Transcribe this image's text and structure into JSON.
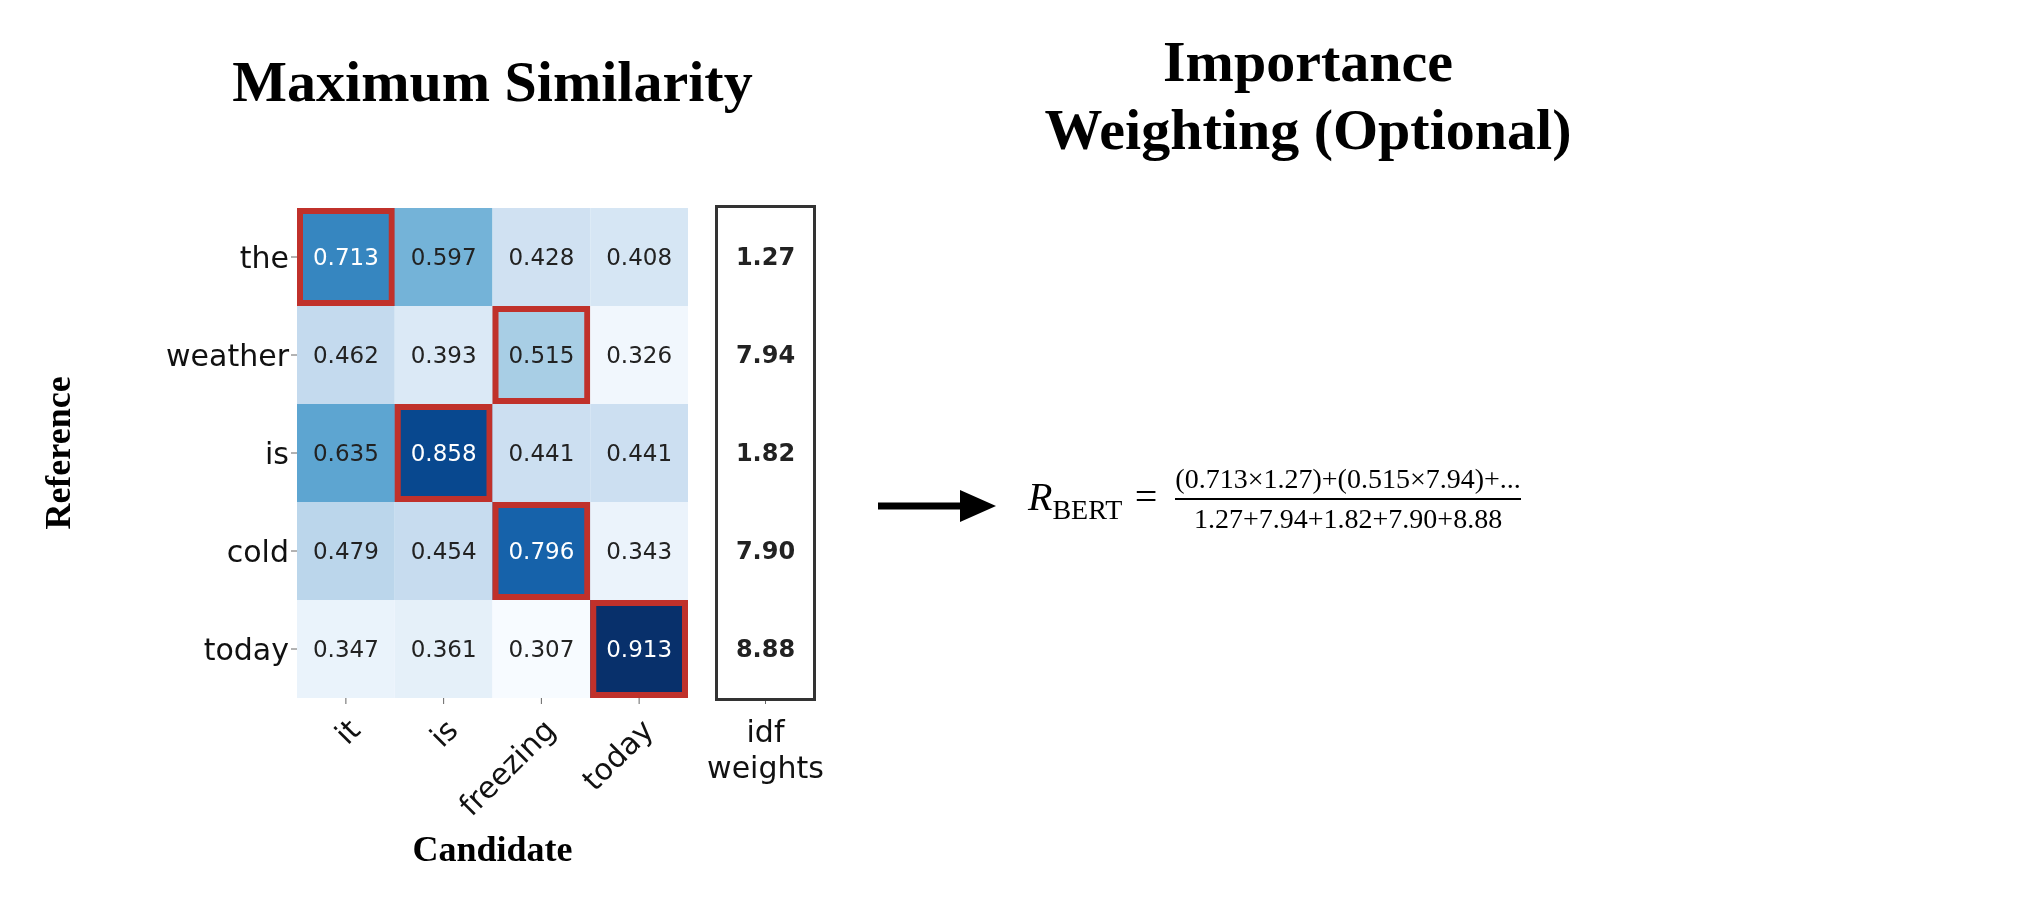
{
  "chart_data": [
    {
      "type": "heatmap",
      "title": "Maximum Similarity",
      "xlabel": "Candidate",
      "ylabel": "Reference",
      "categories": [
        "it",
        "is",
        "freezing",
        "today"
      ],
      "y_categories": [
        "the",
        "weather",
        "is",
        "cold",
        "today"
      ],
      "data_labels": true,
      "cells": [
        [
          0.713,
          0.597,
          0.428,
          0.408
        ],
        [
          0.462,
          0.393,
          0.515,
          0.326
        ],
        [
          0.635,
          0.858,
          0.441,
          0.441
        ],
        [
          0.479,
          0.454,
          0.796,
          0.343
        ],
        [
          0.347,
          0.361,
          0.307,
          0.913
        ]
      ]
    },
    {
      "type": "heatmap",
      "categories": [
        "idf weights"
      ],
      "y_categories": [
        null,
        null,
        null,
        null,
        null
      ],
      "color": "#ffffff",
      "cells": [
        [
          1.27
        ],
        [
          7.94
        ],
        [
          1.82
        ],
        [
          7.9
        ],
        [
          8.88
        ]
      ],
      "cell_labels": [
        [
          "1.27"
        ],
        [
          "7.94"
        ],
        [
          "1.82"
        ],
        [
          "7.90"
        ],
        [
          "8.88"
        ]
      ]
    },
    {
      "type": "other",
      "title": "Importance Weighting (Optional)",
      "annotations": [
        "R$_{BERT}$ =",
        "(0.713×1.27)+(0.515×7.94)+...",
        "1.27+7.94+1.82+7.90+8.88"
      ]
    }
  ]
}
